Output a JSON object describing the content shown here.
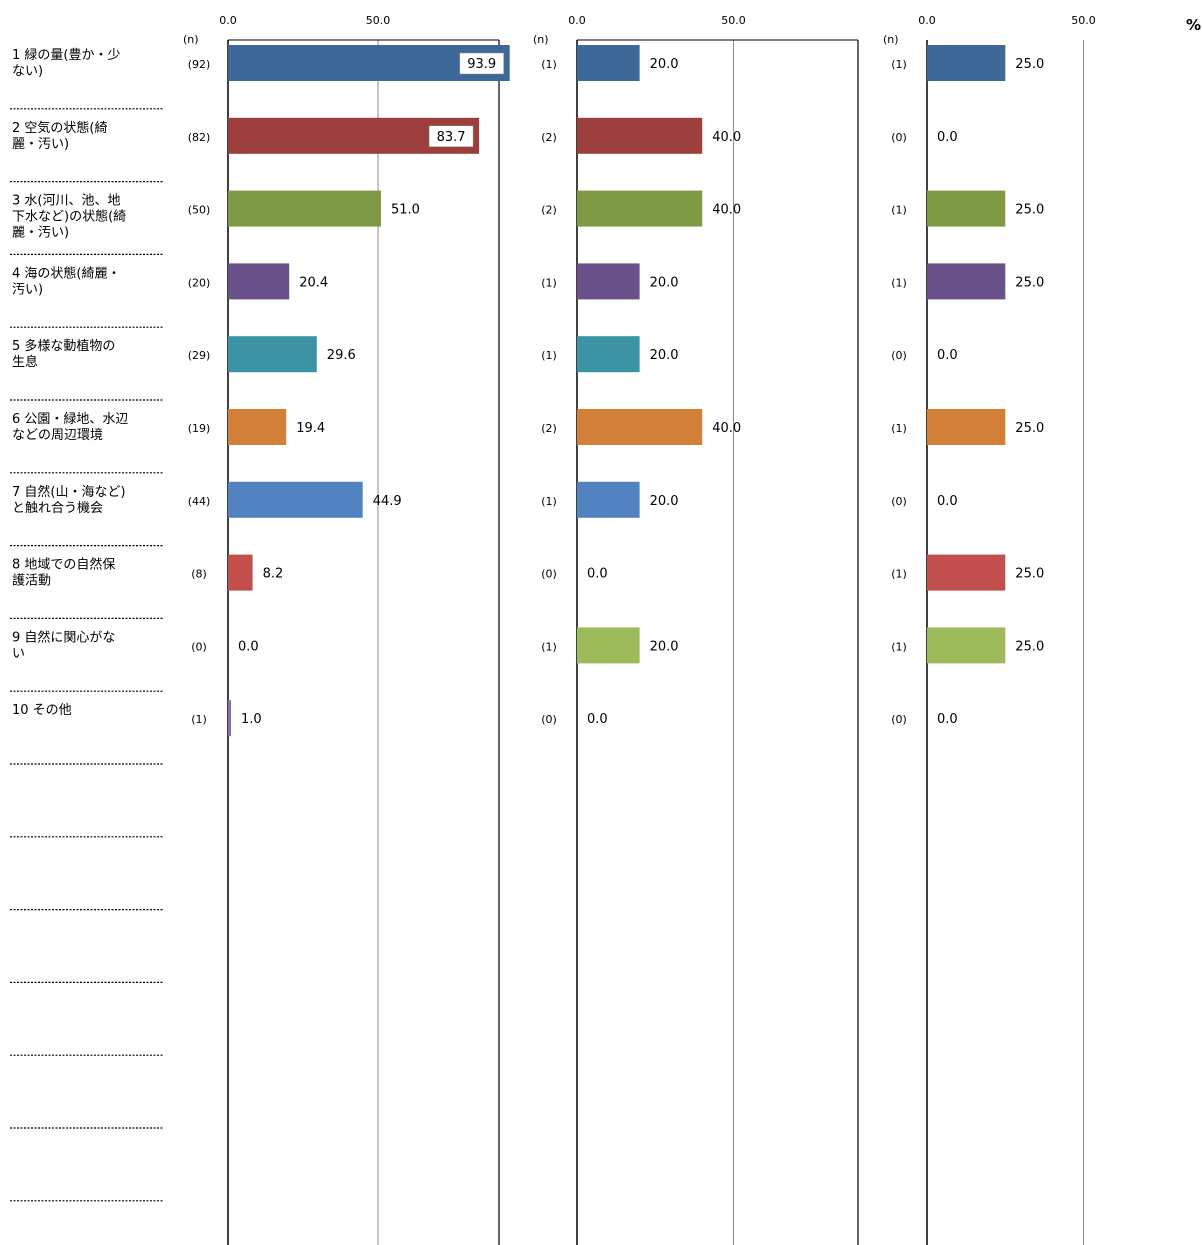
{
  "chart_data": {
    "type": "bar",
    "orientation": "horizontal",
    "percent_unit": "%",
    "n_header": "(n)",
    "tick_labels": [
      "0.0",
      "50.0"
    ],
    "xlim": [
      0,
      100
    ],
    "grid": true,
    "categories": [
      [
        "1 緑の量(豊か・少",
        "ない)"
      ],
      [
        "2 空気の状態(綺",
        "麗・汚い)"
      ],
      [
        "3 水(河川、池、地",
        "下水など)の状態(綺",
        "麗・汚い)"
      ],
      [
        "4 海の状態(綺麗・",
        "汚い)"
      ],
      [
        "5 多様な動植物の",
        "生息"
      ],
      [
        "6 公園・緑地、水辺",
        "などの周辺環境"
      ],
      [
        "7 自然(山・海など)",
        "と触れ合う機会"
      ],
      [
        "8 地域での自然保",
        "護活動"
      ],
      [
        "9 自然に関心がな",
        "い"
      ],
      [
        "10 その他"
      ]
    ],
    "colors": [
      "#3E6898",
      "#9C3E3C",
      "#7E9A45",
      "#6A5189",
      "#3B93A3",
      "#D27F38",
      "#5283C0",
      "#C24E4E",
      "#9DBB5A",
      "#8B6FB6"
    ],
    "panels": [
      {
        "n": [
          "(92)",
          "(82)",
          "(50)",
          "(20)",
          "(29)",
          "(19)",
          "(44)",
          "(8)",
          "(0)",
          "(1)"
        ],
        "values": [
          93.9,
          83.7,
          51.0,
          20.4,
          29.6,
          19.4,
          44.9,
          8.2,
          0.0,
          1.0
        ],
        "labels": [
          "93.9",
          "83.7",
          "51.0",
          "20.4",
          "29.6",
          "19.4",
          "44.9",
          "8.2",
          "0.0",
          "1.0"
        ]
      },
      {
        "n": [
          "(1)",
          "(2)",
          "(2)",
          "(1)",
          "(1)",
          "(2)",
          "(1)",
          "(0)",
          "(1)",
          "(0)"
        ],
        "values": [
          20.0,
          40.0,
          40.0,
          20.0,
          20.0,
          40.0,
          20.0,
          0.0,
          20.0,
          0.0
        ],
        "labels": [
          "20.0",
          "40.0",
          "40.0",
          "20.0",
          "20.0",
          "40.0",
          "20.0",
          "0.0",
          "20.0",
          "0.0"
        ]
      },
      {
        "n": [
          "(1)",
          "(0)",
          "(1)",
          "(1)",
          "(0)",
          "(1)",
          "(0)",
          "(1)",
          "(1)",
          "(0)"
        ],
        "values": [
          25.0,
          0.0,
          25.0,
          25.0,
          0.0,
          25.0,
          0.0,
          25.0,
          25.0,
          0.0
        ],
        "labels": [
          "25.0",
          "0.0",
          "25.0",
          "25.0",
          "0.0",
          "25.0",
          "0.0",
          "25.0",
          "25.0",
          "0.0"
        ]
      }
    ]
  }
}
